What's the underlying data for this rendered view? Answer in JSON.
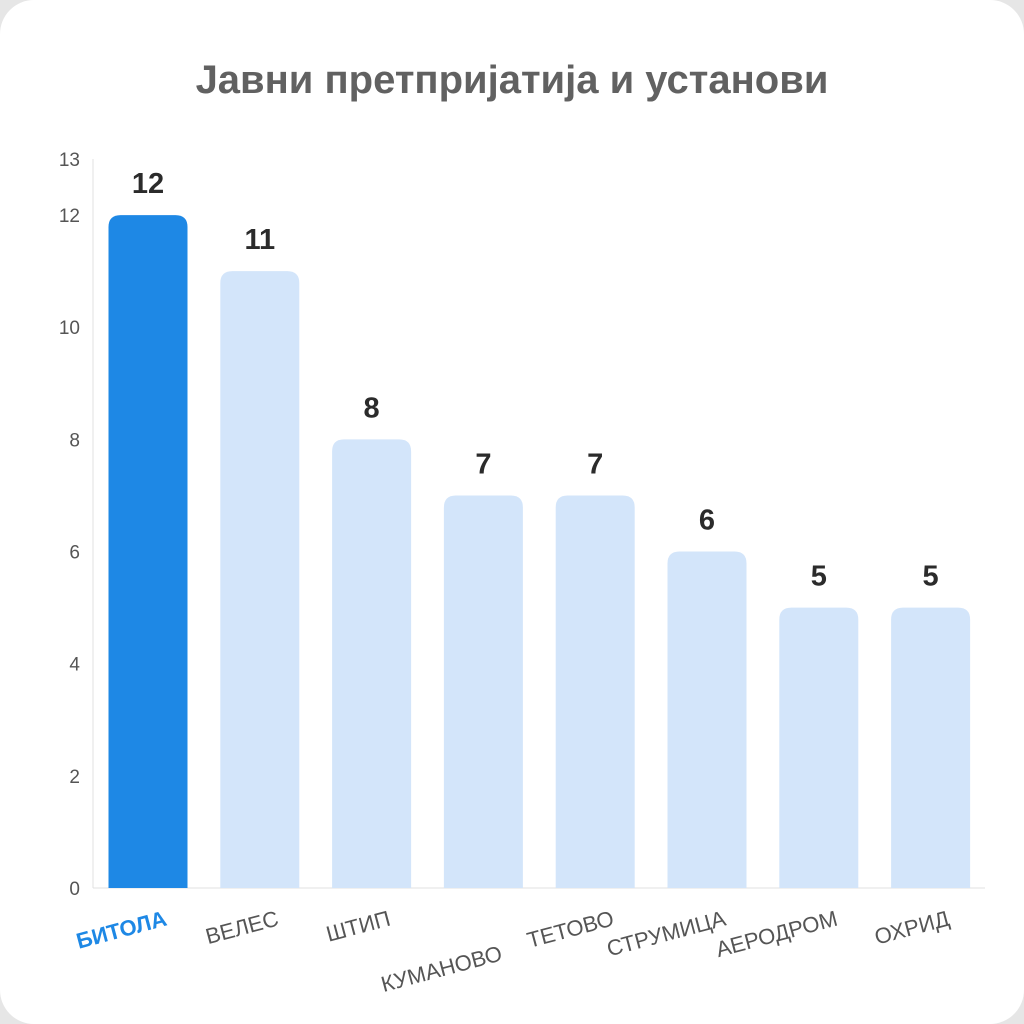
{
  "chart_data": {
    "type": "bar",
    "title": "Јавни претпријатија и установи",
    "categories": [
      "БИТОЛА",
      "ВЕЛЕС",
      "ШТИП",
      "КУМАНОВО",
      "ТЕТОВО",
      "СТРУМИЦА",
      "АЕРОДРОМ",
      "ОХРИД"
    ],
    "values": [
      12,
      11,
      8,
      7,
      7,
      6,
      5,
      5
    ],
    "yticks": [
      0,
      2,
      4,
      6,
      8,
      10,
      12,
      13
    ],
    "ylim": [
      0,
      13
    ],
    "highlight_index": 0,
    "xlabel": "",
    "ylabel": "",
    "grid": false,
    "data_labels": true
  },
  "colors": {
    "highlight_bar": "#1e88e5",
    "bar": "#d3e5fa",
    "highlight_label": "#1e88e5"
  }
}
